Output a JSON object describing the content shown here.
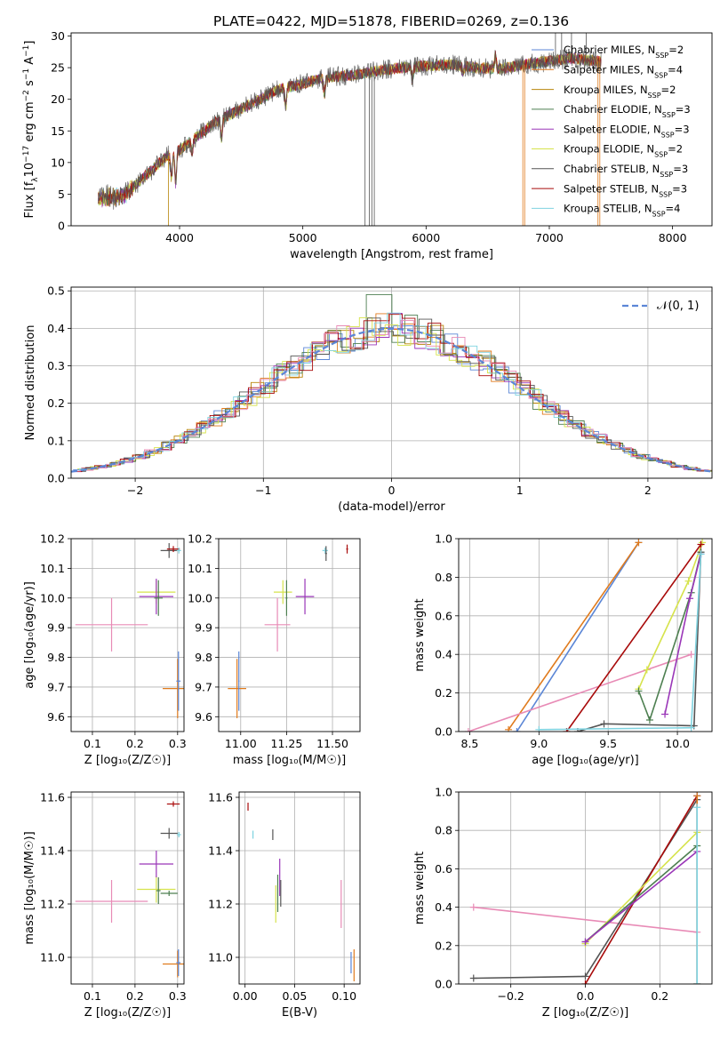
{
  "figure_title": "PLATE=0422, MJD=51878, FIBERID=0269, z=0.136",
  "colors": {
    "palette": [
      "#5b86d6",
      "#e07b1d",
      "#b8860b",
      "#4d7f50",
      "#9a36b8",
      "#d6e34c",
      "#555555",
      "#a80a0a",
      "#7fd3e0",
      "#e88bb6"
    ]
  },
  "chart_data": [
    {
      "type": "line",
      "title": "PLATE=0422, MJD=51878, FIBERID=0269, z=0.136",
      "xlabel": "wavelength [Angstrom, rest frame]",
      "ylabel": "Flux [f_λ10^-17 erg cm^-2 s^-1 A^-1]",
      "xlim": [
        3120,
        8320
      ],
      "ylim": [
        0,
        30.5
      ],
      "xticks": [
        "4000",
        "5000",
        "6000",
        "7000",
        "8000"
      ],
      "yticks": [
        "0",
        "5",
        "10",
        "15",
        "20",
        "25",
        "30"
      ],
      "grid": false,
      "legend_position": "top-right",
      "legend": [
        "Chabrier MILES, N_SSP=2",
        "Salpeter MILES, N_SSP=4",
        "Kroupa MILES, N_SSP=2",
        "Chabrier ELODIE, N_SSP=3",
        "Salpeter ELODIE, N_SSP=3",
        "Kroupa ELODIE, N_SSP=2",
        "Chabrier STELIB, N_SSP=3",
        "Salpeter STELIB, N_SSP=3",
        "Kroupa STELIB, N_SSP=4"
      ],
      "continuum": {
        "x": [
          3340,
          3550,
          3700,
          3900,
          4000,
          4100,
          4300,
          4600,
          4800,
          5000,
          5200,
          5400,
          5600,
          5800,
          6000,
          6200,
          6400,
          6600,
          6800,
          7000,
          7200,
          7400
        ],
        "y": [
          4.3,
          4.8,
          7.5,
          11.0,
          12.0,
          13.5,
          16.5,
          19.5,
          21.5,
          22.5,
          23.5,
          23.8,
          24.5,
          25.0,
          25.3,
          25.5,
          25.0,
          24.8,
          25.5,
          26.0,
          26.5,
          26.0
        ]
      }
    },
    {
      "type": "line",
      "xlabel": "(data-model)/error",
      "ylabel": "Normed distribution",
      "xlim": [
        -2.5,
        2.5
      ],
      "ylim": [
        0,
        0.51
      ],
      "xticks": [
        "−2",
        "−1",
        "0",
        "1",
        "2"
      ],
      "yticks": [
        "0.0",
        "0.1",
        "0.2",
        "0.3",
        "0.4",
        "0.5"
      ],
      "grid": true,
      "legend_position": "top-right",
      "legend": [
        "𝒩(0, 1)"
      ],
      "gaussian": {
        "mean": 0,
        "sigma": 1
      }
    },
    {
      "type": "scatter",
      "xlabel": "Z [log₁₀(Z/Z☉)]",
      "ylabel": "age  [log₁₀(age/yr)]",
      "xlim": [
        0.05,
        0.315
      ],
      "ylim": [
        9.55,
        10.2
      ],
      "xticks": [
        "0.1",
        "0.2",
        "0.3"
      ],
      "yticks": [
        "9.6",
        "9.7",
        "9.8",
        "9.9",
        "10.0",
        "10.1",
        "10.2"
      ],
      "grid": true,
      "points": [
        {
          "x": 0.145,
          "y": 9.91,
          "xerr": 0.085,
          "yerr": 0.09,
          "c": 9
        },
        {
          "x": 0.25,
          "y": 10.02,
          "xerr": 0.045,
          "yerr": 0.04,
          "c": 5
        },
        {
          "x": 0.25,
          "y": 10.005,
          "xerr": 0.04,
          "yerr": 0.06,
          "c": 4
        },
        {
          "x": 0.255,
          "y": 10.0,
          "xerr": 0.01,
          "yerr": 0.06,
          "c": 3
        },
        {
          "x": 0.28,
          "y": 10.16,
          "xerr": 0.02,
          "yerr": 0.025,
          "c": 6
        },
        {
          "x": 0.29,
          "y": 10.165,
          "xerr": 0.015,
          "yerr": 0.01,
          "c": 7
        },
        {
          "x": 0.3,
          "y": 9.695,
          "xerr": 0.035,
          "yerr": 0.1,
          "c": 1
        },
        {
          "x": 0.302,
          "y": 9.72,
          "xerr": 0.005,
          "yerr": 0.1,
          "c": 0
        },
        {
          "x": 0.303,
          "y": 10.16,
          "xerr": 0.005,
          "yerr": 0.01,
          "c": 8
        }
      ]
    },
    {
      "type": "scatter",
      "xlabel": "mass [log₁₀(M/M☉)]",
      "ylabel": "",
      "xlim": [
        10.88,
        11.65
      ],
      "ylim": [
        9.55,
        10.2
      ],
      "xticks": [
        "11.00",
        "11.25",
        "11.50"
      ],
      "yticks": [
        "9.6",
        "9.7",
        "9.8",
        "9.9",
        "10.0",
        "10.1",
        "10.2"
      ],
      "grid": true,
      "points": [
        {
          "x": 10.98,
          "y": 9.695,
          "xerr": 0.05,
          "yerr": 0.1,
          "c": 1
        },
        {
          "x": 10.99,
          "y": 9.72,
          "xerr": 0.003,
          "yerr": 0.1,
          "c": 0
        },
        {
          "x": 11.2,
          "y": 9.91,
          "xerr": 0.07,
          "yerr": 0.09,
          "c": 9
        },
        {
          "x": 11.23,
          "y": 10.02,
          "xerr": 0.05,
          "yerr": 0.04,
          "c": 5
        },
        {
          "x": 11.25,
          "y": 10.0,
          "xerr": 0.005,
          "yerr": 0.06,
          "c": 3
        },
        {
          "x": 11.35,
          "y": 10.005,
          "xerr": 0.05,
          "yerr": 0.06,
          "c": 4
        },
        {
          "x": 11.46,
          "y": 10.16,
          "xerr": 0.015,
          "yerr": 0.01,
          "c": 8
        },
        {
          "x": 11.465,
          "y": 10.15,
          "xerr": 0.005,
          "yerr": 0.025,
          "c": 6
        },
        {
          "x": 11.58,
          "y": 10.165,
          "xerr": 0.005,
          "yerr": 0.015,
          "c": 7
        }
      ]
    },
    {
      "type": "line",
      "xlabel": "age  [log₁₀(age/yr)]",
      "ylabel": "mass weight",
      "xlim": [
        8.42,
        10.25
      ],
      "ylim": [
        0,
        1.0
      ],
      "xticks": [
        "8.5",
        "9.0",
        "9.5",
        "10.0"
      ],
      "yticks": [
        "0.0",
        "0.2",
        "0.4",
        "0.6",
        "0.8",
        "1.0"
      ],
      "grid": true,
      "series": [
        {
          "c": 0,
          "x": [
            8.84,
            9.72
          ],
          "y": [
            0.0,
            0.98
          ]
        },
        {
          "c": 1,
          "x": [
            8.78,
            9.72
          ],
          "y": [
            0.01,
            0.98
          ]
        },
        {
          "c": 9,
          "x": [
            8.49,
            10.1
          ],
          "y": [
            0.0,
            0.4
          ]
        },
        {
          "c": 5,
          "x": [
            9.72,
            9.78,
            10.08,
            10.18
          ],
          "y": [
            0.22,
            0.32,
            0.78,
            0.98
          ]
        },
        {
          "c": 3,
          "x": [
            9.72,
            9.8,
            10.1,
            10.17
          ],
          "y": [
            0.21,
            0.06,
            0.72,
            0.93
          ]
        },
        {
          "c": 4,
          "x": [
            9.91,
            10.09,
            10.17
          ],
          "y": [
            0.09,
            0.69,
            0.92
          ]
        },
        {
          "c": 7,
          "x": [
            9.2,
            10.17
          ],
          "y": [
            0.0,
            0.97
          ]
        },
        {
          "c": 6,
          "x": [
            9.28,
            9.47,
            10.12,
            10.17
          ],
          "y": [
            0.0,
            0.04,
            0.03,
            0.93
          ]
        },
        {
          "c": 8,
          "x": [
            9.0,
            10.1,
            10.17
          ],
          "y": [
            0.01,
            0.02,
            0.92
          ]
        }
      ]
    },
    {
      "type": "scatter",
      "xlabel": "Z [log₁₀(Z/Z☉)]",
      "ylabel": "mass [log₁₀(M/M☉)]",
      "xlim": [
        0.05,
        0.315
      ],
      "ylim": [
        10.9,
        11.62
      ],
      "xticks": [
        "0.1",
        "0.2",
        "0.3"
      ],
      "yticks": [
        "11.0",
        "11.2",
        "11.4",
        "11.6"
      ],
      "grid": true,
      "points": [
        {
          "x": 0.145,
          "y": 11.21,
          "xerr": 0.085,
          "yerr": 0.08,
          "c": 9
        },
        {
          "x": 0.25,
          "y": 11.255,
          "xerr": 0.045,
          "yerr": 0.05,
          "c": 5
        },
        {
          "x": 0.25,
          "y": 11.35,
          "xerr": 0.04,
          "yerr": 0.05,
          "c": 4
        },
        {
          "x": 0.255,
          "y": 11.25,
          "xerr": 0.005,
          "yerr": 0.05,
          "c": 3
        },
        {
          "x": 0.28,
          "y": 11.24,
          "xerr": 0.02,
          "yerr": 0.01,
          "c": 3
        },
        {
          "x": 0.28,
          "y": 11.465,
          "xerr": 0.02,
          "yerr": 0.02,
          "c": 6
        },
        {
          "x": 0.29,
          "y": 11.575,
          "xerr": 0.015,
          "yerr": 0.01,
          "c": 7
        },
        {
          "x": 0.3,
          "y": 10.975,
          "xerr": 0.035,
          "yerr": 0.05,
          "c": 1
        },
        {
          "x": 0.302,
          "y": 10.98,
          "xerr": 0.005,
          "yerr": 0.05,
          "c": 0
        },
        {
          "x": 0.303,
          "y": 11.46,
          "xerr": 0.005,
          "yerr": 0.01,
          "c": 8
        }
      ]
    },
    {
      "type": "scatter",
      "xlabel": "E(B-V)",
      "ylabel": "",
      "xlim": [
        -0.006,
        0.116
      ],
      "ylim": [
        10.9,
        11.62
      ],
      "xticks": [
        "0.00",
        "0.05",
        "0.10"
      ],
      "yticks": [
        "11.0",
        "11.2",
        "11.4",
        "11.6"
      ],
      "grid": true,
      "points": [
        {
          "x": 0.003,
          "y": 11.565,
          "xerr": 0,
          "yerr": 0.015,
          "c": 7
        },
        {
          "x": 0.008,
          "y": 11.46,
          "xerr": 0,
          "yerr": 0.015,
          "c": 8
        },
        {
          "x": 0.028,
          "y": 11.46,
          "xerr": 0,
          "yerr": 0.02,
          "c": 6
        },
        {
          "x": 0.031,
          "y": 11.2,
          "xerr": 0,
          "yerr": 0.07,
          "c": 5
        },
        {
          "x": 0.033,
          "y": 11.24,
          "xerr": 0,
          "yerr": 0.07,
          "c": 3
        },
        {
          "x": 0.035,
          "y": 11.3,
          "xerr": 0,
          "yerr": 0.07,
          "c": 4
        },
        {
          "x": 0.036,
          "y": 11.24,
          "xerr": 0,
          "yerr": 0.05,
          "c": 6
        },
        {
          "x": 0.097,
          "y": 11.2,
          "xerr": 0,
          "yerr": 0.09,
          "c": 9
        },
        {
          "x": 0.107,
          "y": 10.98,
          "xerr": 0,
          "yerr": 0.04,
          "c": 0
        },
        {
          "x": 0.11,
          "y": 10.97,
          "xerr": 0,
          "yerr": 0.06,
          "c": 1
        }
      ]
    },
    {
      "type": "line",
      "xlabel": "Z [log₁₀(Z/Z☉)]",
      "ylabel": "mass weight",
      "xlim": [
        -0.34,
        0.34
      ],
      "ylim": [
        0,
        1.0
      ],
      "xticks": [
        "−0.2",
        "0.0",
        "0.2"
      ],
      "yticks": [
        "0.0",
        "0.2",
        "0.4",
        "0.6",
        "0.8",
        "1.0"
      ],
      "grid": true,
      "series": [
        {
          "c": 9,
          "x": [
            -0.3,
            0.3
          ],
          "y": [
            0.4,
            0.27
          ]
        },
        {
          "c": 6,
          "x": [
            -0.3,
            0.0,
            0.3
          ],
          "y": [
            0.03,
            0.04,
            0.96
          ]
        },
        {
          "c": 7,
          "x": [
            0.0,
            0.3
          ],
          "y": [
            0.0,
            0.98
          ]
        },
        {
          "c": 5,
          "x": [
            0.0,
            0.3
          ],
          "y": [
            0.21,
            0.79
          ]
        },
        {
          "c": 3,
          "x": [
            0.0,
            0.3
          ],
          "y": [
            0.22,
            0.72
          ]
        },
        {
          "c": 4,
          "x": [
            0.0,
            0.3
          ],
          "y": [
            0.22,
            0.69
          ]
        },
        {
          "c": 0,
          "x": [
            0.3,
            0.3
          ],
          "y": [
            0.0,
            0.98
          ]
        },
        {
          "c": 1,
          "x": [
            0.3,
            0.3
          ],
          "y": [
            0.0,
            0.98
          ]
        },
        {
          "c": 8,
          "x": [
            0.3,
            0.3
          ],
          "y": [
            0.0,
            0.92
          ]
        }
      ]
    }
  ]
}
